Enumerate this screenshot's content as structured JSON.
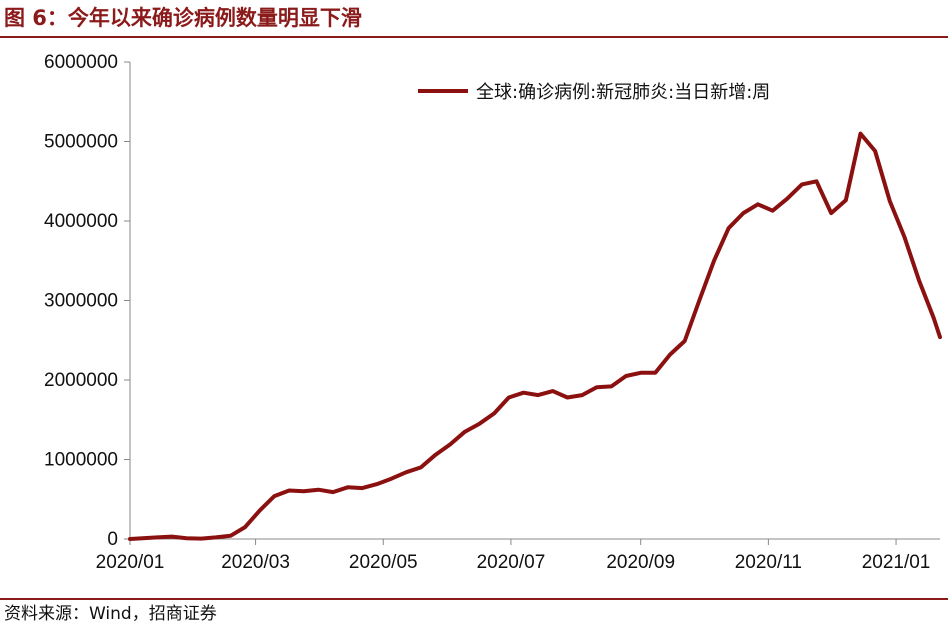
{
  "header": {
    "title": "图 6：今年以来确诊病例数量明显下滑"
  },
  "footer": {
    "source": "资料来源：Wind，招商证券"
  },
  "colors": {
    "accent": "#8B1A1A",
    "series": "#8B1010",
    "axis": "#888888"
  },
  "chart_data": {
    "type": "line",
    "xlim": [
      "2020-01-01",
      "2021-01-22"
    ],
    "ylim": [
      0,
      6000000
    ],
    "yticks": [
      0,
      1000000,
      2000000,
      3000000,
      4000000,
      5000000,
      6000000
    ],
    "ytick_labels": [
      "0",
      "1000000",
      "2000000",
      "3000000",
      "4000000",
      "5000000",
      "6000000"
    ],
    "xticks": [
      "2020-01-01",
      "2020-03-01",
      "2020-05-01",
      "2020-07-01",
      "2020-09-01",
      "2020-11-01",
      "2021-01-01"
    ],
    "xtick_labels": [
      "2020/01",
      "2020/03",
      "2020/05",
      "2020/07",
      "2020/09",
      "2020/11",
      "2021/01"
    ],
    "grid": false,
    "legend": "top-right",
    "series": [
      {
        "name": "全球:确诊病例:新冠肺炎:当日新增:周",
        "x": [
          "2020-01-01",
          "2020-01-07",
          "2020-01-14",
          "2020-01-21",
          "2020-01-28",
          "2020-02-04",
          "2020-02-11",
          "2020-02-18",
          "2020-02-25",
          "2020-03-03",
          "2020-03-10",
          "2020-03-17",
          "2020-03-24",
          "2020-03-31",
          "2020-04-07",
          "2020-04-14",
          "2020-04-21",
          "2020-04-28",
          "2020-05-05",
          "2020-05-12",
          "2020-05-19",
          "2020-05-26",
          "2020-06-02",
          "2020-06-09",
          "2020-06-16",
          "2020-06-23",
          "2020-06-30",
          "2020-07-07",
          "2020-07-14",
          "2020-07-21",
          "2020-07-28",
          "2020-08-04",
          "2020-08-11",
          "2020-08-18",
          "2020-08-25",
          "2020-09-01",
          "2020-09-08",
          "2020-09-15",
          "2020-09-22",
          "2020-09-29",
          "2020-10-06",
          "2020-10-13",
          "2020-10-20",
          "2020-10-27",
          "2020-11-03",
          "2020-11-10",
          "2020-11-17",
          "2020-11-24",
          "2020-12-01",
          "2020-12-08",
          "2020-12-15",
          "2020-12-22",
          "2020-12-29",
          "2021-01-05",
          "2021-01-12",
          "2021-01-19",
          "2021-01-22"
        ],
        "values": [
          0,
          10000,
          20000,
          30000,
          10000,
          5000,
          20000,
          40000,
          150000,
          360000,
          540000,
          610000,
          600000,
          620000,
          590000,
          650000,
          640000,
          690000,
          760000,
          840000,
          900000,
          1060000,
          1190000,
          1350000,
          1450000,
          1580000,
          1780000,
          1840000,
          1810000,
          1860000,
          1780000,
          1810000,
          1910000,
          1920000,
          2050000,
          2090000,
          2090000,
          2320000,
          2490000,
          3000000,
          3500000,
          3910000,
          4100000,
          4210000,
          4130000,
          4280000,
          4460000,
          4500000,
          4100000,
          4260000,
          5100000,
          4880000,
          4250000,
          3800000,
          3250000,
          2780000,
          2540000
        ]
      }
    ]
  }
}
